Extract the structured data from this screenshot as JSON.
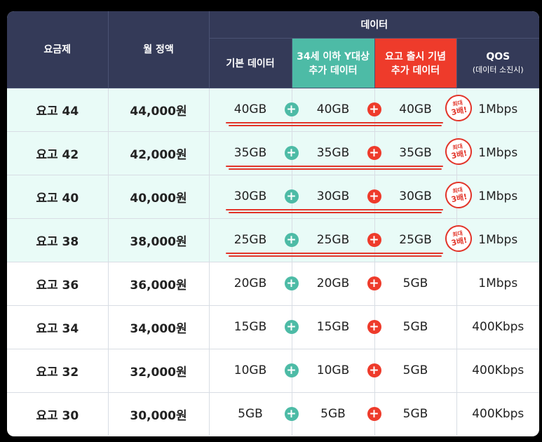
{
  "header": {
    "plan": "요금제",
    "price": "월 정액",
    "data_group": "데이터",
    "basic": "기본 데이터",
    "youth_line1": "34세 이하 Y대상",
    "youth_line2": "추가 데이터",
    "launch_line1": "요고 출시 기념",
    "launch_line2": "추가 데이터",
    "qos": "QOS",
    "qos_sub": "(데이터 소진시)"
  },
  "badge": {
    "line1": "최대",
    "line2": "3배!"
  },
  "colors": {
    "header_bg": "#343a58",
    "teal": "#4dbba6",
    "red": "#ee3b2b",
    "highlight_row": "#e9fbf7"
  },
  "rows": [
    {
      "plan": "요고 44",
      "price": "44,000원",
      "basic": "40GB",
      "youth": "40GB",
      "launch": "40GB",
      "qos": "1Mbps",
      "highlight": true
    },
    {
      "plan": "요고 42",
      "price": "42,000원",
      "basic": "35GB",
      "youth": "35GB",
      "launch": "35GB",
      "qos": "1Mbps",
      "highlight": true
    },
    {
      "plan": "요고 40",
      "price": "40,000원",
      "basic": "30GB",
      "youth": "30GB",
      "launch": "30GB",
      "qos": "1Mbps",
      "highlight": true
    },
    {
      "plan": "요고 38",
      "price": "38,000원",
      "basic": "25GB",
      "youth": "25GB",
      "launch": "25GB",
      "qos": "1Mbps",
      "highlight": true
    },
    {
      "plan": "요고 36",
      "price": "36,000원",
      "basic": "20GB",
      "youth": "20GB",
      "launch": "5GB",
      "qos": "1Mbps",
      "highlight": false
    },
    {
      "plan": "요고 34",
      "price": "34,000원",
      "basic": "15GB",
      "youth": "15GB",
      "launch": "5GB",
      "qos": "400Kbps",
      "highlight": false
    },
    {
      "plan": "요고 32",
      "price": "32,000원",
      "basic": "10GB",
      "youth": "10GB",
      "launch": "5GB",
      "qos": "400Kbps",
      "highlight": false
    },
    {
      "plan": "요고 30",
      "price": "30,000원",
      "basic": "5GB",
      "youth": "5GB",
      "launch": "5GB",
      "qos": "400Kbps",
      "highlight": false
    }
  ]
}
